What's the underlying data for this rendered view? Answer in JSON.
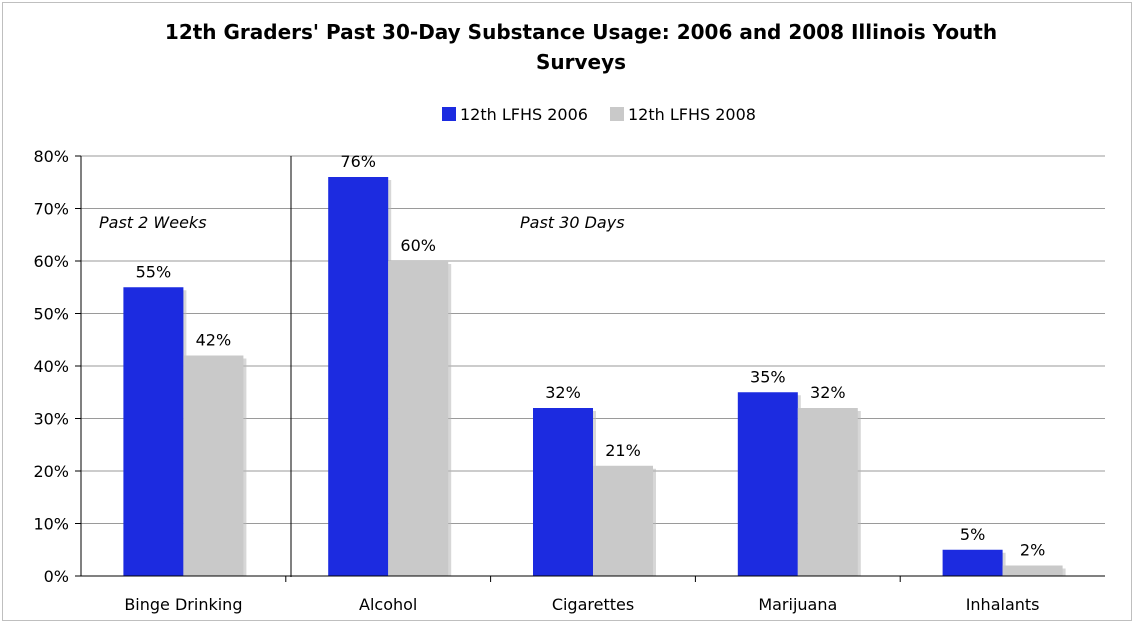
{
  "chart_data": {
    "type": "bar",
    "title": "12th Graders' Past 30-Day Substance Usage:  2006 and 2008 Illinois Youth Surveys",
    "title_lines": [
      "12th Graders' Past 30-Day Substance Usage:  2006 and 2008 Illinois Youth",
      "Surveys"
    ],
    "categories": [
      "Binge Drinking",
      "Alcohol",
      "Cigarettes",
      "Marijuana",
      "Inhalants"
    ],
    "series": [
      {
        "name": "12th LFHS 2006",
        "color": "#1c2be0",
        "values": [
          55,
          76,
          32,
          35,
          5
        ],
        "labels": [
          "55%",
          "76%",
          "32%",
          "35%",
          "5%"
        ]
      },
      {
        "name": "12th LFHS 2008",
        "color": "#c9c9c9",
        "values": [
          42,
          60,
          21,
          32,
          2
        ],
        "labels": [
          "42%",
          "60%",
          "21%",
          "32%",
          "2%"
        ]
      }
    ],
    "ylim": [
      0,
      80
    ],
    "yticks": [
      "0%",
      "10%",
      "20%",
      "30%",
      "40%",
      "50%",
      "60%",
      "70%",
      "80%"
    ],
    "xlabel": "",
    "ylabel": "",
    "grid": true,
    "legend_position": "top",
    "annotations": [
      "Past 2 Weeks",
      "Past 30 Days"
    ]
  }
}
